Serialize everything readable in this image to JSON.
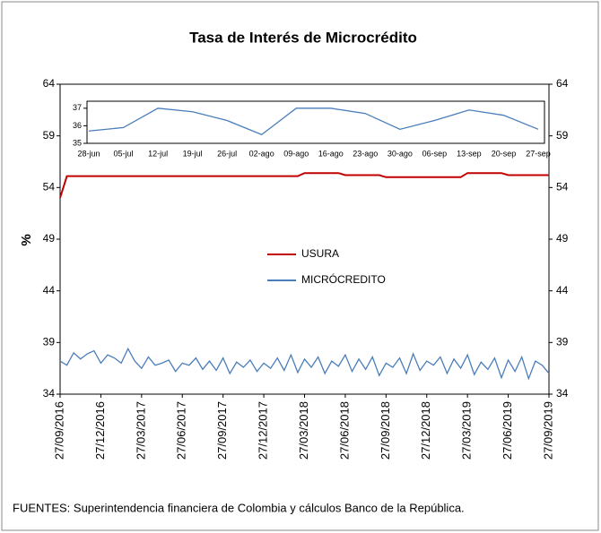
{
  "chart_data": [
    {
      "type": "line",
      "title": "Tasa de Interés de Microcrédito",
      "y_label": "%",
      "source": "FUENTES: Superintendencia financiera de Colombia y cálculos Banco de la República.",
      "categories": [
        "27/09/2016",
        null,
        null,
        null,
        null,
        null,
        "27/12/2016",
        null,
        null,
        null,
        null,
        null,
        "27/03/2017",
        null,
        null,
        null,
        null,
        null,
        "27/06/2017",
        null,
        null,
        null,
        null,
        null,
        "27/09/2017",
        null,
        null,
        null,
        null,
        null,
        "27/12/2017",
        null,
        null,
        null,
        null,
        null,
        "27/03/2018",
        null,
        null,
        null,
        null,
        null,
        "27/06/2018",
        null,
        null,
        null,
        null,
        null,
        "27/09/2018",
        null,
        null,
        null,
        null,
        null,
        "27/12/2018",
        null,
        null,
        null,
        null,
        null,
        "27/03/2019",
        null,
        null,
        null,
        null,
        null,
        "27/06/2019",
        null,
        null,
        null,
        null,
        null,
        "27/09/2019"
      ],
      "series": [
        {
          "name": "USURA",
          "color": "#c00000",
          "values": [
            53.0,
            55.1,
            55.1,
            55.1,
            55.1,
            55.1,
            55.1,
            55.1,
            55.1,
            55.1,
            55.1,
            55.1,
            55.1,
            55.1,
            55.1,
            55.1,
            55.1,
            55.1,
            55.1,
            55.1,
            55.1,
            55.1,
            55.1,
            55.1,
            55.1,
            55.1,
            55.1,
            55.1,
            55.1,
            55.1,
            55.1,
            55.1,
            55.1,
            55.1,
            55.1,
            55.1,
            55.4,
            55.4,
            55.4,
            55.4,
            55.4,
            55.4,
            55.2,
            55.2,
            55.2,
            55.2,
            55.2,
            55.2,
            55.0,
            55.0,
            55.0,
            55.0,
            55.0,
            55.0,
            55.0,
            55.0,
            55.0,
            55.0,
            55.0,
            55.0,
            55.4,
            55.4,
            55.4,
            55.4,
            55.4,
            55.4,
            55.2,
            55.2,
            55.2,
            55.2,
            55.2,
            55.2,
            55.2
          ]
        },
        {
          "name": "MICRÓCREDITO",
          "color": "#4a7ebb",
          "values": [
            37.2,
            36.8,
            38.0,
            37.4,
            37.9,
            38.2,
            37.0,
            37.8,
            37.5,
            37.0,
            38.4,
            37.2,
            36.5,
            37.6,
            36.8,
            37.0,
            37.3,
            36.2,
            37.0,
            36.8,
            37.5,
            36.4,
            37.2,
            36.3,
            37.5,
            36.0,
            37.1,
            36.6,
            37.3,
            36.2,
            37.0,
            36.5,
            37.5,
            36.3,
            37.8,
            36.1,
            37.4,
            36.6,
            37.6,
            36.0,
            37.2,
            36.7,
            37.8,
            36.2,
            37.4,
            36.4,
            37.6,
            35.8,
            37.0,
            36.6,
            37.5,
            36.0,
            37.9,
            36.3,
            37.2,
            36.8,
            37.6,
            36.0,
            37.4,
            36.5,
            37.8,
            35.9,
            37.1,
            36.4,
            37.5,
            35.6,
            37.3,
            36.2,
            37.6,
            35.5,
            37.2,
            36.8,
            36.0
          ]
        }
      ],
      "ylim": [
        34,
        64
      ],
      "yticks": [
        34,
        39,
        44,
        49,
        54,
        59,
        64
      ],
      "y2lim": [
        34,
        64
      ],
      "y2ticks": [
        34,
        39,
        44,
        49,
        54,
        59,
        64
      ],
      "legend": "center",
      "grid": false
    },
    {
      "type": "line",
      "categories": [
        "28-jun",
        "05-jul",
        "12-jul",
        "19-jul",
        "26-jul",
        "02-ago",
        "09-ago",
        "16-ago",
        "23-ago",
        "30-ago",
        "06-sep",
        "13-sep",
        "20-sep",
        "27-sep"
      ],
      "series": [
        {
          "name": "MICRÓCREDITO",
          "color": "#4a7ebb",
          "values": [
            35.7,
            35.9,
            37.0,
            36.8,
            36.3,
            35.5,
            37.0,
            37.0,
            36.7,
            35.8,
            36.3,
            36.9,
            36.6,
            35.8
          ]
        }
      ],
      "ylim": [
        35,
        37.4
      ],
      "yticks": [
        35,
        36,
        37
      ]
    }
  ]
}
